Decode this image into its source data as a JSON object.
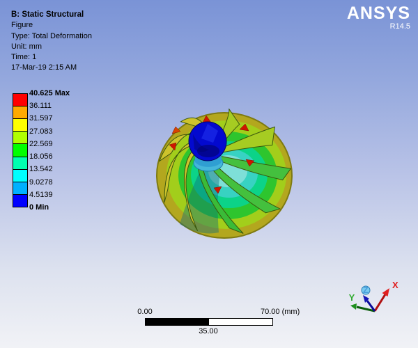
{
  "viewport": {
    "annotation": {
      "title": "B: Static Structural",
      "lines": [
        "Figure",
        "Type: Total Deformation",
        "Unit: mm",
        "Time: 1",
        "17-Mar-19 2:15 AM"
      ]
    },
    "brand": {
      "name": "ANSYS",
      "release": "R14.5"
    },
    "legend": {
      "labels": [
        "40.625 Max",
        "36.111",
        "31.597",
        "27.083",
        "22.569",
        "18.056",
        "13.542",
        "9.0278",
        "4.5139",
        "0 Min"
      ],
      "colors": [
        "#ff0000",
        "#ffaa00",
        "#ffff00",
        "#b0ff00",
        "#00ff00",
        "#00ffb0",
        "#00ffff",
        "#00b0ff",
        "#0000ff"
      ]
    },
    "ruler": {
      "start": "0.00",
      "end": "70.00 (mm)",
      "mid": "35.00"
    },
    "triad": {
      "x": "X",
      "y": "Y",
      "z": "Z",
      "x_color": "#e02020",
      "y_color": "#2faa2f",
      "z_color": "#16168c"
    }
  }
}
